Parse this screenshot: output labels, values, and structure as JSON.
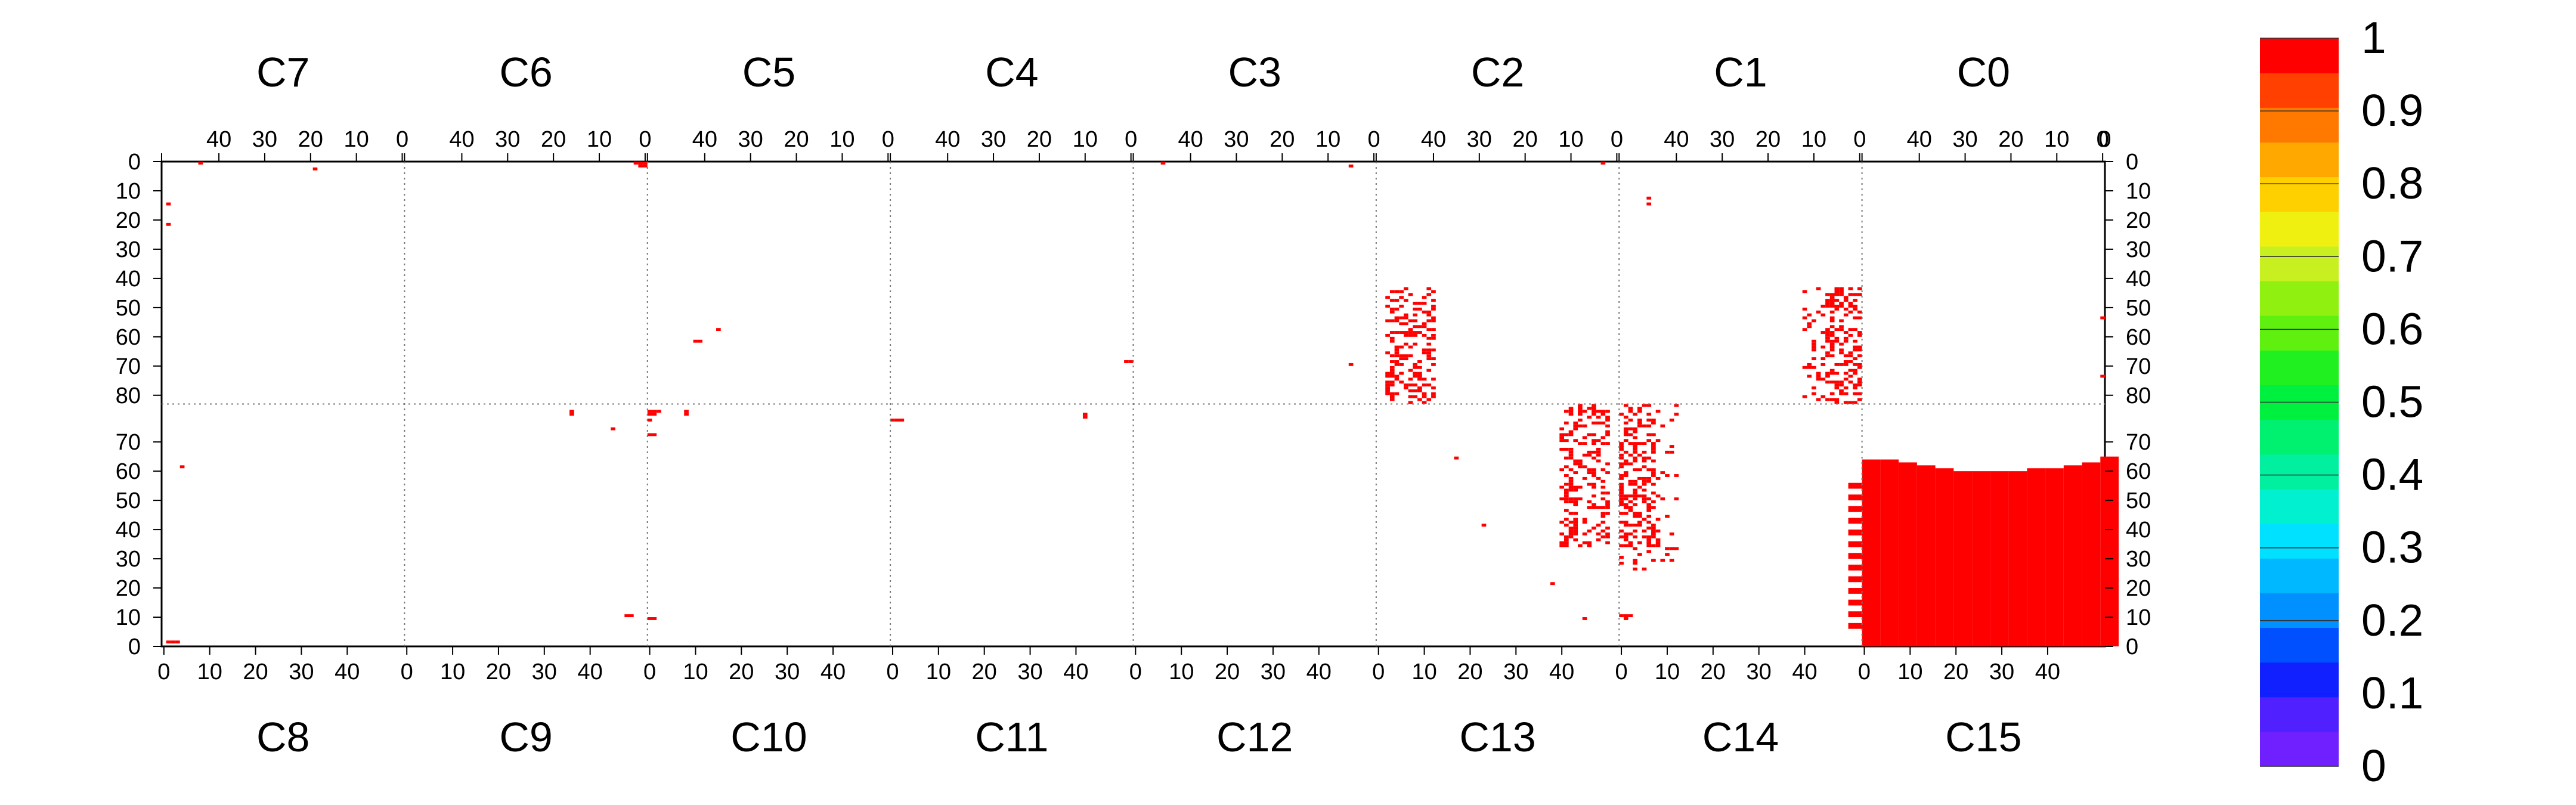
{
  "chart_data": {
    "type": "heatmap",
    "title": "",
    "top_chips": [
      "C7",
      "C6",
      "C5",
      "C4",
      "C3",
      "C2",
      "C1",
      "C0"
    ],
    "bottom_chips": [
      "C8",
      "C9",
      "C10",
      "C11",
      "C12",
      "C13",
      "C14",
      "C15"
    ],
    "top_column_ticks": [
      "40",
      "30",
      "20",
      "10",
      "0"
    ],
    "bottom_column_ticks": [
      "0",
      "10",
      "20",
      "30",
      "40"
    ],
    "row_ticks_top_half": [
      "0",
      "10",
      "20",
      "30",
      "40",
      "50",
      "60",
      "70",
      "80"
    ],
    "row_ticks_bottom_half": [
      "70",
      "60",
      "50",
      "40",
      "30",
      "20",
      "10",
      "0"
    ],
    "colorbar": {
      "range": [
        0,
        1
      ],
      "labels": [
        "1",
        "0.9",
        "0.8",
        "0.7",
        "0.6",
        "0.5",
        "0.4",
        "0.3",
        "0.2",
        "0.1",
        "0"
      ],
      "colors": [
        "#7020ff",
        "#5020ff",
        "#1020ff",
        "#0050ff",
        "#0090ff",
        "#00b8ff",
        "#00e0ff",
        "#00f0d0",
        "#00f0a0",
        "#00f070",
        "#00f040",
        "#20f020",
        "#60f010",
        "#90f010",
        "#c8f020",
        "#f0f010",
        "#ffd000",
        "#ffa800",
        "#ff7800",
        "#ff4000",
        "#ff0000"
      ]
    },
    "grid": true,
    "cells_value": 1,
    "blocks": [
      {
        "chip": "C15",
        "profile_cols": [
          0,
          4,
          8,
          12,
          16,
          20,
          24,
          28,
          32,
          36,
          40,
          44,
          48,
          52,
          56
        ],
        "profile_rows": [
          64,
          64,
          63,
          62,
          61,
          60,
          60,
          60,
          60,
          61,
          61,
          62,
          63,
          65,
          64
        ]
      }
    ],
    "points": [
      {
        "chip": "C7",
        "col": 44,
        "row": 0
      },
      {
        "chip": "C7",
        "col": 19,
        "row": 2
      },
      {
        "chip": "C7",
        "col": 51,
        "row": 14
      },
      {
        "chip": "C7",
        "col": 51,
        "row": 21
      },
      {
        "chip": "C6",
        "col": 0,
        "row": 0
      },
      {
        "chip": "C6",
        "col": 1,
        "row": 0
      },
      {
        "chip": "C6",
        "col": 2,
        "row": 0
      },
      {
        "chip": "C6",
        "col": 0,
        "row": 1
      },
      {
        "chip": "C6",
        "col": 1,
        "row": 1
      },
      {
        "chip": "C5",
        "col": 41,
        "row": 61
      },
      {
        "chip": "C5",
        "col": 42,
        "row": 61
      },
      {
        "chip": "C5",
        "col": 37,
        "row": 57
      },
      {
        "chip": "C3",
        "col": 46,
        "row": 0
      },
      {
        "chip": "C3",
        "col": 5,
        "row": 1
      },
      {
        "chip": "C3",
        "col": 5,
        "row": 69
      },
      {
        "chip": "C2",
        "col": 3,
        "row": 0
      },
      {
        "chip": "C4",
        "col": 0,
        "row": 68
      },
      {
        "chip": "C4",
        "col": 1,
        "row": 68
      },
      {
        "chip": "C1",
        "col": 46,
        "row": 14
      },
      {
        "chip": "C1",
        "col": 46,
        "row": 12
      },
      {
        "chip": "C0",
        "col": 0,
        "row": 53
      },
      {
        "chip": "C0",
        "col": 0,
        "row": 73
      },
      {
        "chip": "C8",
        "col": 1,
        "row": 1
      },
      {
        "chip": "C8",
        "col": 2,
        "row": 1
      },
      {
        "chip": "C8",
        "col": 3,
        "row": 1
      },
      {
        "chip": "C8",
        "col": 4,
        "row": 61
      },
      {
        "chip": "C9",
        "col": 36,
        "row": 80
      },
      {
        "chip": "C9",
        "col": 36,
        "row": 79
      },
      {
        "chip": "C9",
        "col": 45,
        "row": 74
      },
      {
        "chip": "C10",
        "col": 0,
        "row": 80
      },
      {
        "chip": "C10",
        "col": 1,
        "row": 80
      },
      {
        "chip": "C10",
        "col": 2,
        "row": 80
      },
      {
        "chip": "C10",
        "col": 0,
        "row": 79
      },
      {
        "chip": "C10",
        "col": 1,
        "row": 79
      },
      {
        "chip": "C10",
        "col": 8,
        "row": 80
      },
      {
        "chip": "C10",
        "col": 8,
        "row": 79
      },
      {
        "chip": "C10",
        "col": 1,
        "row": 72
      },
      {
        "chip": "C10",
        "col": 0,
        "row": 72
      },
      {
        "chip": "C9",
        "col": 49,
        "row": 10
      },
      {
        "chip": "C9",
        "col": 48,
        "row": 10
      },
      {
        "chip": "C10",
        "col": 0,
        "row": 9
      },
      {
        "chip": "C10",
        "col": 1,
        "row": 9
      },
      {
        "chip": "C10",
        "col": 0,
        "row": 77
      },
      {
        "chip": "C11",
        "col": 0,
        "row": 77
      },
      {
        "chip": "C11",
        "col": 1,
        "row": 77
      },
      {
        "chip": "C11",
        "col": 2,
        "row": 77
      },
      {
        "chip": "C11",
        "col": 42,
        "row": 79
      },
      {
        "chip": "C11",
        "col": 42,
        "row": 78
      },
      {
        "chip": "C13",
        "col": 17,
        "row": 64
      },
      {
        "chip": "C13",
        "col": 23,
        "row": 41
      },
      {
        "chip": "C13",
        "col": 38,
        "row": 21
      },
      {
        "chip": "C13",
        "col": 45,
        "row": 75
      },
      {
        "chip": "C13",
        "col": 45,
        "row": 9
      },
      {
        "chip": "C14",
        "col": 0,
        "row": 10
      },
      {
        "chip": "C14",
        "col": 1,
        "row": 10
      },
      {
        "chip": "C14",
        "col": 2,
        "row": 10
      },
      {
        "chip": "C14",
        "col": 1,
        "row": 9
      }
    ],
    "cluster": {
      "chips": [
        "C2",
        "C1",
        "C13",
        "C14"
      ],
      "col_range_left": [
        40,
        50
      ],
      "col_range_right": [
        0,
        12
      ],
      "row_top_min": 43,
      "row_bottom_min": 26
    }
  }
}
